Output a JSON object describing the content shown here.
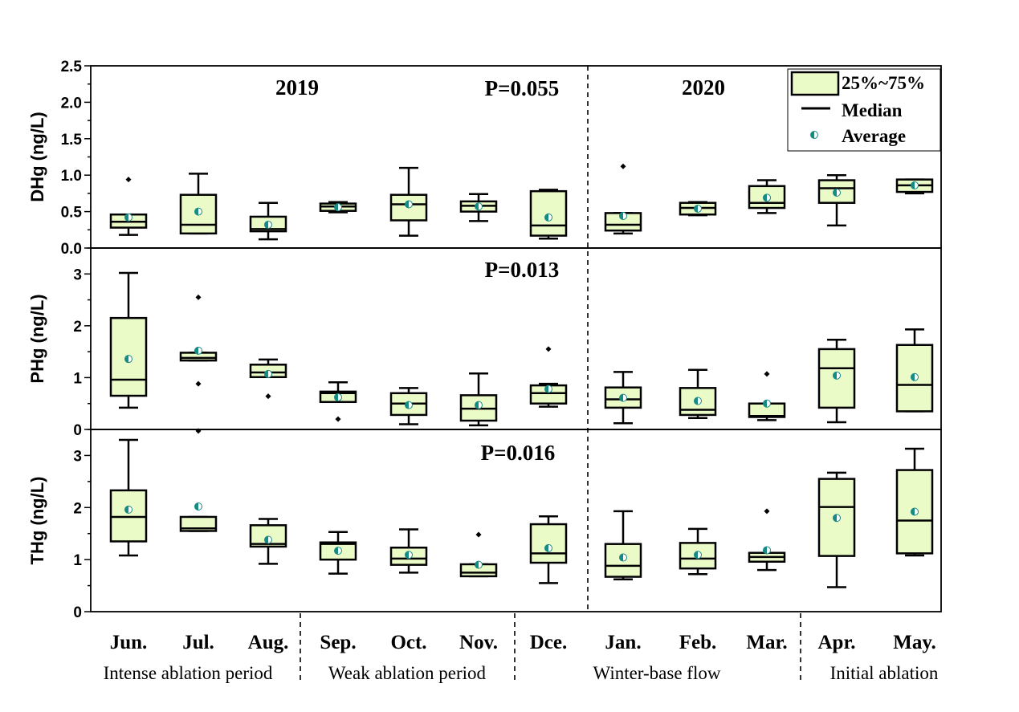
{
  "chart_data": {
    "type": "box",
    "months": [
      "Jun.",
      "Jul.",
      "Aug.",
      "Sep.",
      "Oct.",
      "Nov.",
      "Dce.",
      "Jan.",
      "Feb.",
      "Mar.",
      "Apr.",
      "May."
    ],
    "years": [
      "2019",
      "2020"
    ],
    "periods": [
      "Intense ablation period",
      "Weak ablation period",
      "Winter-base flow",
      "Initial ablation"
    ],
    "legend": {
      "box": "25%~75%",
      "median": "Median",
      "average": "Average",
      "position": "top-right"
    },
    "colors": {
      "box_fill": "#ebfbc8",
      "average_dot": "#168a84",
      "stroke": "#000000"
    },
    "panels": [
      {
        "name": "DHg",
        "ylabel": "DHg (ng/L)",
        "ylim": [
          0,
          2.5
        ],
        "yticks": [
          "0.0",
          "0.5",
          "1.0",
          "1.5",
          "2.0",
          "2.5"
        ],
        "pvalue": "P=0.055",
        "boxes": [
          {
            "min": 0.18,
            "q1": 0.28,
            "med": 0.36,
            "q3": 0.46,
            "max": 0.46,
            "mean": 0.42,
            "outliers": [
              0.94
            ]
          },
          {
            "min": 0.2,
            "q1": 0.2,
            "med": 0.32,
            "q3": 0.73,
            "max": 1.02,
            "mean": 0.5,
            "outliers": []
          },
          {
            "min": 0.12,
            "q1": 0.23,
            "med": 0.26,
            "q3": 0.43,
            "max": 0.62,
            "mean": 0.32,
            "outliers": []
          },
          {
            "min": 0.49,
            "q1": 0.51,
            "med": 0.57,
            "q3": 0.61,
            "max": 0.63,
            "mean": 0.56,
            "outliers": []
          },
          {
            "min": 0.17,
            "q1": 0.38,
            "med": 0.6,
            "q3": 0.73,
            "max": 1.1,
            "mean": 0.6,
            "outliers": []
          },
          {
            "min": 0.37,
            "q1": 0.5,
            "med": 0.58,
            "q3": 0.64,
            "max": 0.74,
            "mean": 0.57,
            "outliers": []
          },
          {
            "min": 0.13,
            "q1": 0.17,
            "med": 0.31,
            "q3": 0.78,
            "max": 0.8,
            "mean": 0.42,
            "outliers": []
          },
          {
            "min": 0.2,
            "q1": 0.24,
            "med": 0.32,
            "q3": 0.48,
            "max": 0.48,
            "mean": 0.44,
            "outliers": [
              1.12
            ]
          },
          {
            "min": 0.45,
            "q1": 0.46,
            "med": 0.55,
            "q3": 0.62,
            "max": 0.63,
            "mean": 0.54,
            "outliers": []
          },
          {
            "min": 0.48,
            "q1": 0.55,
            "med": 0.62,
            "q3": 0.85,
            "max": 0.93,
            "mean": 0.69,
            "outliers": []
          },
          {
            "min": 0.31,
            "q1": 0.62,
            "med": 0.82,
            "q3": 0.93,
            "max": 1.0,
            "mean": 0.76,
            "outliers": []
          },
          {
            "min": 0.75,
            "q1": 0.77,
            "med": 0.86,
            "q3": 0.94,
            "max": 0.94,
            "mean": 0.86,
            "outliers": []
          }
        ]
      },
      {
        "name": "PHg",
        "ylabel": "PHg (ng/L)",
        "ylim": [
          0,
          3.5
        ],
        "yticks": [
          "0",
          "1",
          "2",
          "3"
        ],
        "pvalue": "P=0.013",
        "boxes": [
          {
            "min": 0.42,
            "q1": 0.65,
            "med": 0.96,
            "q3": 2.15,
            "max": 3.02,
            "mean": 1.36,
            "outliers": []
          },
          {
            "min": 1.33,
            "q1": 1.33,
            "med": 1.38,
            "q3": 1.48,
            "max": 1.48,
            "mean": 1.52,
            "outliers": [
              2.55,
              0.88,
              -0.03
            ]
          },
          {
            "min": 1.01,
            "q1": 1.01,
            "med": 1.1,
            "q3": 1.25,
            "max": 1.35,
            "mean": 1.07,
            "outliers": [
              0.64
            ]
          },
          {
            "min": 0.53,
            "q1": 0.53,
            "med": 0.7,
            "q3": 0.73,
            "max": 0.91,
            "mean": 0.62,
            "outliers": [
              0.2
            ]
          },
          {
            "min": 0.1,
            "q1": 0.28,
            "med": 0.5,
            "q3": 0.7,
            "max": 0.8,
            "mean": 0.47,
            "outliers": []
          },
          {
            "min": 0.08,
            "q1": 0.17,
            "med": 0.4,
            "q3": 0.66,
            "max": 1.08,
            "mean": 0.47,
            "outliers": []
          },
          {
            "min": 0.44,
            "q1": 0.5,
            "med": 0.7,
            "q3": 0.85,
            "max": 0.88,
            "mean": 0.78,
            "outliers": [
              1.55
            ]
          },
          {
            "min": 0.12,
            "q1": 0.42,
            "med": 0.58,
            "q3": 0.81,
            "max": 1.11,
            "mean": 0.61,
            "outliers": []
          },
          {
            "min": 0.22,
            "q1": 0.28,
            "med": 0.38,
            "q3": 0.8,
            "max": 1.15,
            "mean": 0.55,
            "outliers": []
          },
          {
            "min": 0.18,
            "q1": 0.24,
            "med": 0.26,
            "q3": 0.5,
            "max": 0.5,
            "mean": 0.5,
            "outliers": [
              1.07
            ]
          },
          {
            "min": 0.14,
            "q1": 0.42,
            "med": 1.18,
            "q3": 1.55,
            "max": 1.73,
            "mean": 1.04,
            "outliers": []
          },
          {
            "min": 0.35,
            "q1": 0.35,
            "med": 0.86,
            "q3": 1.63,
            "max": 1.93,
            "mean": 1.01,
            "outliers": []
          }
        ]
      },
      {
        "name": "THg",
        "ylabel": "THg (ng/L)",
        "ylim": [
          0,
          3.5
        ],
        "yticks": [
          "0",
          "1",
          "2",
          "3"
        ],
        "pvalue": "P=0.016",
        "boxes": [
          {
            "min": 1.08,
            "q1": 1.35,
            "med": 1.82,
            "q3": 2.33,
            "max": 3.3,
            "mean": 1.96,
            "outliers": []
          },
          {
            "min": 1.55,
            "q1": 1.55,
            "med": 1.6,
            "q3": 1.82,
            "max": 1.82,
            "mean": 2.02,
            "outliers": []
          },
          {
            "min": 0.92,
            "q1": 1.25,
            "med": 1.3,
            "q3": 1.66,
            "max": 1.78,
            "mean": 1.38,
            "outliers": []
          },
          {
            "min": 0.73,
            "q1": 1.0,
            "med": 1.3,
            "q3": 1.33,
            "max": 1.53,
            "mean": 1.17,
            "outliers": []
          },
          {
            "min": 0.75,
            "q1": 0.9,
            "med": 1.02,
            "q3": 1.23,
            "max": 1.58,
            "mean": 1.09,
            "outliers": []
          },
          {
            "min": 0.68,
            "q1": 0.68,
            "med": 0.75,
            "q3": 0.91,
            "max": 0.91,
            "mean": 0.9,
            "outliers": [
              1.48
            ]
          },
          {
            "min": 0.55,
            "q1": 0.94,
            "med": 1.12,
            "q3": 1.68,
            "max": 1.83,
            "mean": 1.22,
            "outliers": []
          },
          {
            "min": 0.62,
            "q1": 0.67,
            "med": 0.88,
            "q3": 1.3,
            "max": 1.93,
            "mean": 1.04,
            "outliers": []
          },
          {
            "min": 0.72,
            "q1": 0.83,
            "med": 1.02,
            "q3": 1.32,
            "max": 1.59,
            "mean": 1.09,
            "outliers": []
          },
          {
            "min": 0.8,
            "q1": 0.96,
            "med": 1.05,
            "q3": 1.13,
            "max": 1.13,
            "mean": 1.18,
            "outliers": [
              1.93
            ]
          },
          {
            "min": 0.47,
            "q1": 1.07,
            "med": 2.01,
            "q3": 2.55,
            "max": 2.67,
            "mean": 1.8,
            "outliers": []
          },
          {
            "min": 1.08,
            "q1": 1.12,
            "med": 1.75,
            "q3": 2.72,
            "max": 3.13,
            "mean": 1.92,
            "outliers": []
          }
        ]
      }
    ]
  }
}
